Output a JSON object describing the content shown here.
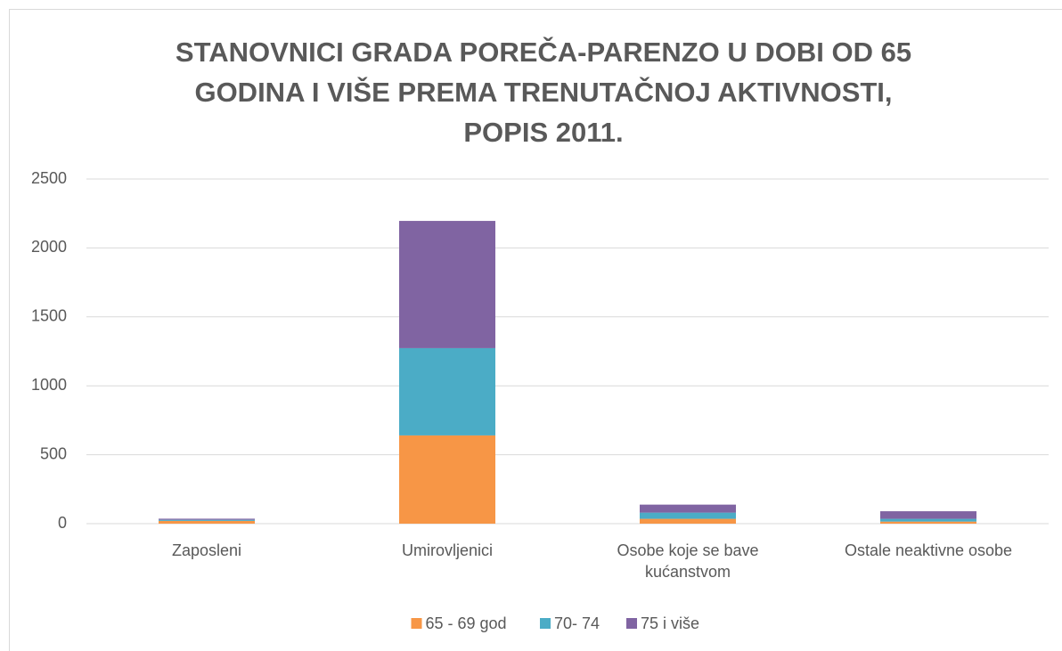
{
  "chart_data": {
    "type": "stacked_bar",
    "title": "STANOVNICI GRADA POREČA-PARENZO U DOBI OD 65 GODINA I VIŠE PREMA TRENUTAČNOJ AKTIVNOSTI, POPIS 2011.",
    "categories": [
      "Zaposleni",
      "Umirovljenici",
      "Osobe koje se bave kućanstvom",
      "Ostale neaktivne osobe"
    ],
    "series": [
      {
        "name": "65 - 69 god",
        "color": "#f79646",
        "values": [
          20,
          640,
          35,
          15
        ]
      },
      {
        "name": "70- 74",
        "color": "#4bacc6",
        "values": [
          8,
          633,
          45,
          20
        ]
      },
      {
        "name": "75 i više",
        "color": "#8064a2",
        "values": [
          8,
          923,
          58,
          55
        ]
      }
    ],
    "ylim": [
      0,
      2500
    ],
    "yticks": [
      0,
      500,
      1000,
      1500,
      2000,
      2500
    ],
    "grid": true,
    "legend": "bottom"
  }
}
